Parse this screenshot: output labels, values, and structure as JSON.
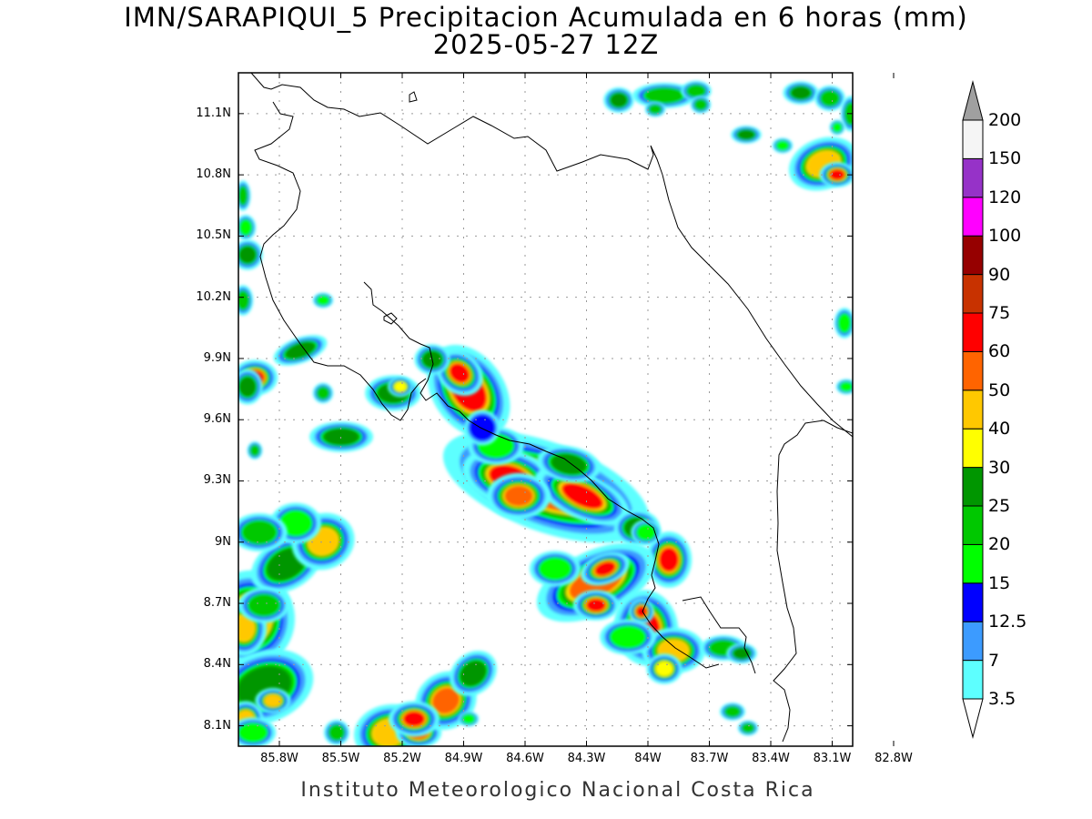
{
  "title": {
    "line1": "IMN/SARAPIQUI_5 Precipitacion Acumulada en 6 horas (mm)",
    "line2": "2025-05-27 12Z"
  },
  "footer": "Instituto Meteorologico Nacional Costa Rica",
  "map": {
    "lon_range": [
      -86.0,
      -83.0
    ],
    "lat_range": [
      8.0,
      11.3
    ],
    "lon_ticks": [
      {
        "lon": -85.8,
        "label": "85.8W"
      },
      {
        "lon": -85.5,
        "label": "85.5W"
      },
      {
        "lon": -85.2,
        "label": "85.2W"
      },
      {
        "lon": -84.9,
        "label": "84.9W"
      },
      {
        "lon": -84.6,
        "label": "84.6W"
      },
      {
        "lon": -84.3,
        "label": "84.3W"
      },
      {
        "lon": -84.0,
        "label": "84W"
      },
      {
        "lon": -83.7,
        "label": "83.7W"
      },
      {
        "lon": -83.4,
        "label": "83.4W"
      },
      {
        "lon": -83.1,
        "label": "83.1W"
      },
      {
        "lon": -82.8,
        "label": "82.8W"
      }
    ],
    "lat_ticks": [
      {
        "lat": 11.1,
        "label": "11.1N"
      },
      {
        "lat": 10.8,
        "label": "10.8N"
      },
      {
        "lat": 10.5,
        "label": "10.5N"
      },
      {
        "lat": 10.2,
        "label": "10.2N"
      },
      {
        "lat": 9.9,
        "label": "9.9N"
      },
      {
        "lat": 9.6,
        "label": "9.6N"
      },
      {
        "lat": 9.3,
        "label": "9.3N"
      },
      {
        "lat": 9.0,
        "label": "9N"
      },
      {
        "lat": 8.7,
        "label": "8.7N"
      },
      {
        "lat": 8.4,
        "label": "8.4N"
      },
      {
        "lat": 8.1,
        "label": "8.1N"
      }
    ],
    "grid": true
  },
  "colorbar": {
    "levels": [
      {
        "label": "3.5",
        "color": "#5dffff"
      },
      {
        "label": "7",
        "color": "#3c9bff"
      },
      {
        "label": "12.5",
        "color": "#0000ff"
      },
      {
        "label": "15",
        "color": "#00ff00"
      },
      {
        "label": "20",
        "color": "#00c800"
      },
      {
        "label": "25",
        "color": "#009600"
      },
      {
        "label": "30",
        "color": "#ffff00"
      },
      {
        "label": "40",
        "color": "#ffc800"
      },
      {
        "label": "50",
        "color": "#ff6400"
      },
      {
        "label": "60",
        "color": "#ff0000"
      },
      {
        "label": "75",
        "color": "#c83200"
      },
      {
        "label": "90",
        "color": "#960000"
      },
      {
        "label": "100",
        "color": "#ff00ff"
      },
      {
        "label": "120",
        "color": "#9632c8"
      },
      {
        "label": "150",
        "color": "#f5f5f5"
      },
      {
        "label": "200",
        "color": "#a0a0a0"
      }
    ]
  }
}
